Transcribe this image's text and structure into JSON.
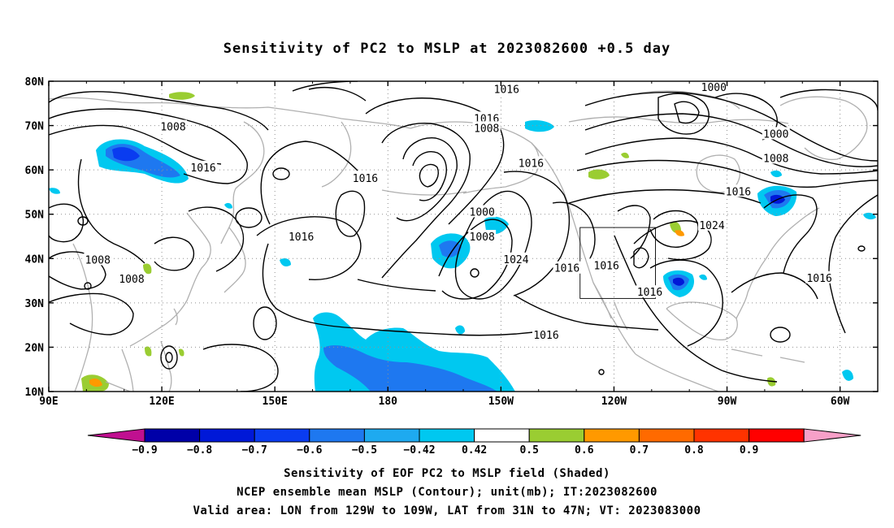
{
  "title": "Sensitivity of PC2 to MSLP at 2023082600 +0.5 day",
  "map": {
    "lat_labels": [
      "80N",
      "70N",
      "60N",
      "50N",
      "40N",
      "30N",
      "20N",
      "10N"
    ],
    "lon_labels": [
      "90E",
      "120E",
      "150E",
      "180",
      "150W",
      "120W",
      "90W",
      "60W"
    ],
    "lon_range_deg": [
      90,
      310
    ],
    "lat_range_deg": [
      10,
      80
    ],
    "valid_box": {
      "lon_min": 231,
      "lon_max": 251,
      "lat_min": 31,
      "lat_max": 47
    },
    "contour_color": "#000000",
    "coastline_color": "#b0b0b0",
    "contour_labels": [
      {
        "text": "1016",
        "lon": 211.5,
        "lat": 78.3
      },
      {
        "text": "1000",
        "lon": 266.5,
        "lat": 78.7
      },
      {
        "text": "1016",
        "lon": 206.2,
        "lat": 71.7
      },
      {
        "text": "1008",
        "lon": 206.2,
        "lat": 69.5
      },
      {
        "text": "1008",
        "lon": 123.0,
        "lat": 69.8
      },
      {
        "text": "1000",
        "lon": 283.0,
        "lat": 68.2
      },
      {
        "text": "1008",
        "lon": 283.0,
        "lat": 62.7
      },
      {
        "text": "1016",
        "lon": 131.0,
        "lat": 60.6
      },
      {
        "text": "1016",
        "lon": 218.0,
        "lat": 61.6
      },
      {
        "text": "1016",
        "lon": 174.0,
        "lat": 58.2
      },
      {
        "text": "1016",
        "lon": 273.0,
        "lat": 55.2
      },
      {
        "text": "1000",
        "lon": 205.0,
        "lat": 50.6
      },
      {
        "text": "1024",
        "lon": 266.0,
        "lat": 47.6
      },
      {
        "text": "1016",
        "lon": 157.0,
        "lat": 45.0
      },
      {
        "text": "1008",
        "lon": 205.0,
        "lat": 45.0
      },
      {
        "text": "1008",
        "lon": 103.0,
        "lat": 39.8
      },
      {
        "text": "1024",
        "lon": 214.0,
        "lat": 39.9
      },
      {
        "text": "1016",
        "lon": 227.5,
        "lat": 37.9
      },
      {
        "text": "1016",
        "lon": 238.0,
        "lat": 38.5
      },
      {
        "text": "1008",
        "lon": 112.0,
        "lat": 35.5
      },
      {
        "text": "1016",
        "lon": 294.5,
        "lat": 35.7
      },
      {
        "text": "1016",
        "lon": 249.5,
        "lat": 32.5
      },
      {
        "text": "1016",
        "lon": 222.0,
        "lat": 22.8
      }
    ]
  },
  "colorbar": {
    "levels": [
      "−0.9",
      "−0.8",
      "−0.7",
      "−0.6",
      "−0.5",
      "−0.42",
      "0.42",
      "0.5",
      "0.6",
      "0.7",
      "0.8",
      "0.9"
    ],
    "level_values": [
      -0.9,
      -0.8,
      -0.7,
      -0.6,
      -0.5,
      -0.42,
      0.42,
      0.5,
      0.6,
      0.7,
      0.8,
      0.9
    ],
    "colors": [
      "#c01090",
      "#0000a8",
      "#0018d8",
      "#0a3cf0",
      "#1e78f0",
      "#1eaaf0",
      "#00c8f0",
      "#ffffff",
      "#9acd32",
      "#ff9900",
      "#ff6a00",
      "#ff3300",
      "#ff0000",
      "#f7a0c8"
    ]
  },
  "footer": {
    "line1": "Sensitivity of EOF PC2 to MSLP field (Shaded)",
    "line2": "NCEP ensemble mean MSLP (Contour); unit(mb); IT:2023082600",
    "line3": "Valid area: LON from 129W to 109W, LAT from 31N to 47N; VT: 2023083000"
  }
}
